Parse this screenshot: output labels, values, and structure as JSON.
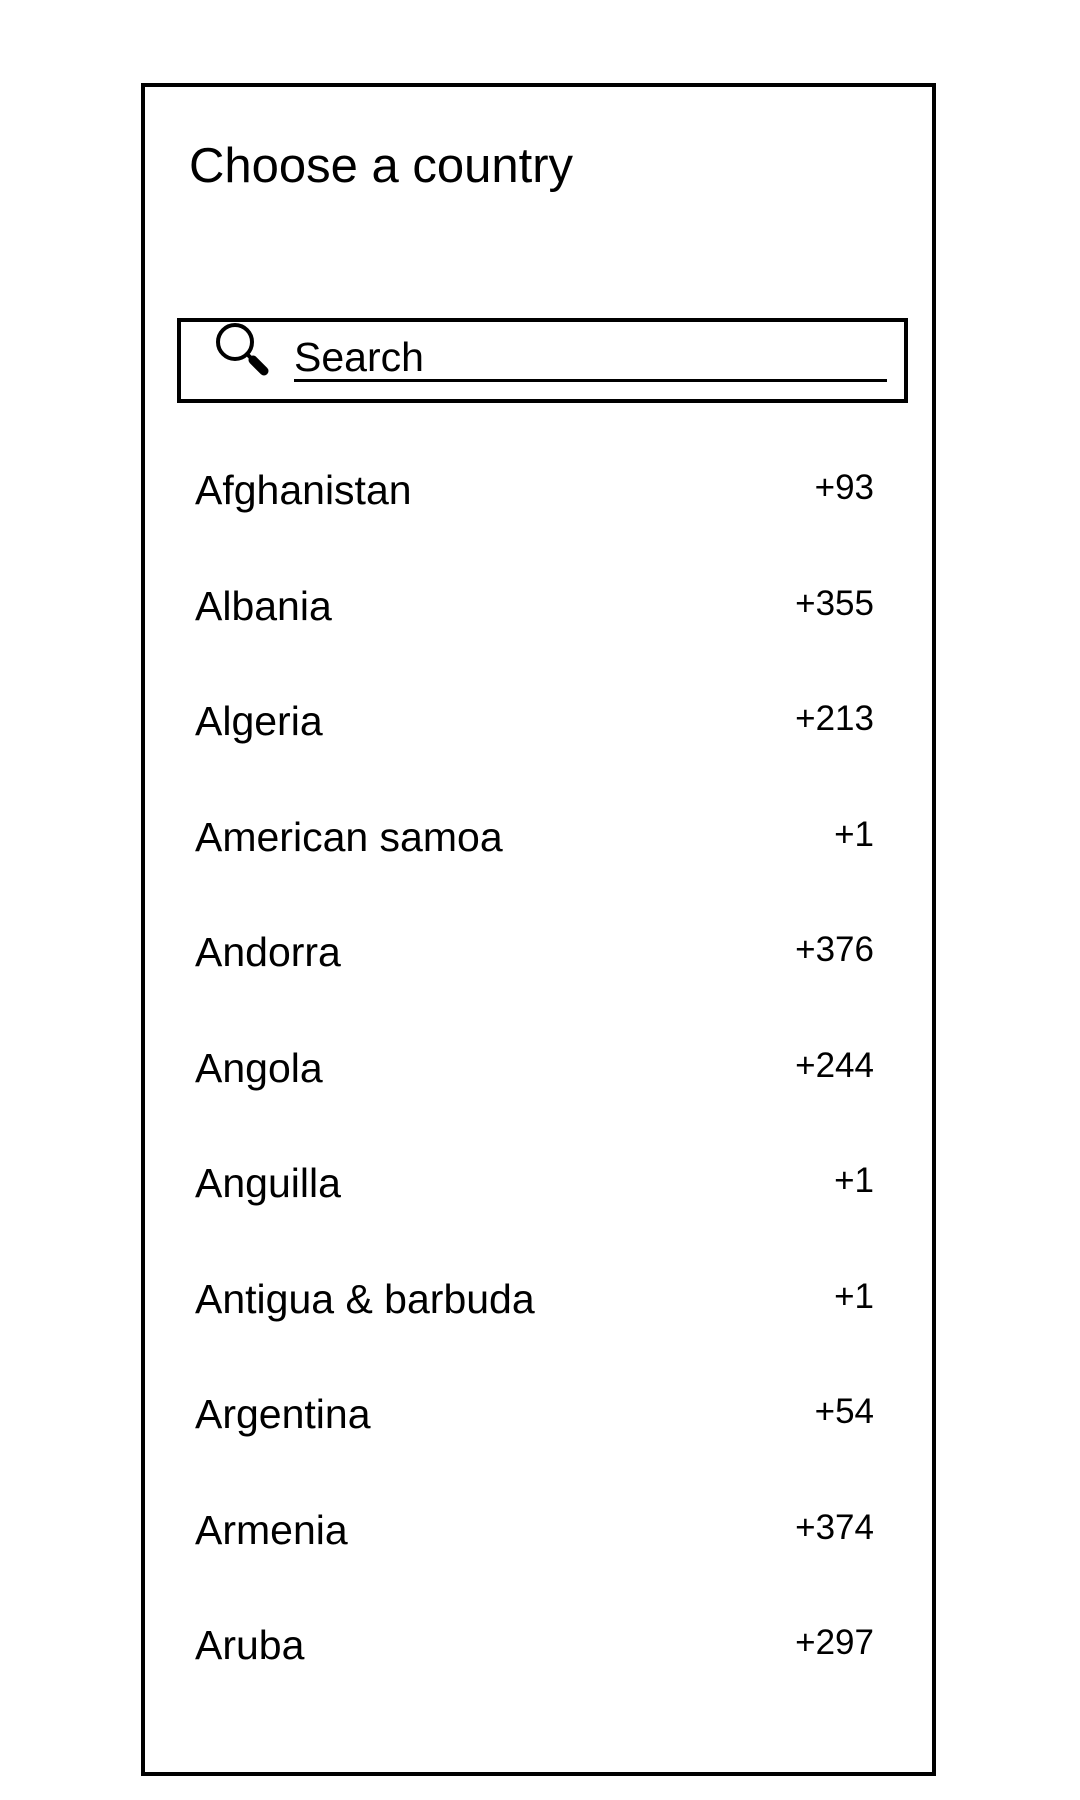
{
  "dialog": {
    "title": "Choose a country"
  },
  "search": {
    "placeholder": "Search",
    "value": "",
    "icon": "search-icon"
  },
  "countries": [
    {
      "name": "Afghanistan",
      "code": "+93"
    },
    {
      "name": "Albania",
      "code": "+355"
    },
    {
      "name": "Algeria",
      "code": "+213"
    },
    {
      "name": "American samoa",
      "code": "+1"
    },
    {
      "name": "Andorra",
      "code": "+376"
    },
    {
      "name": "Angola",
      "code": "+244"
    },
    {
      "name": "Anguilla",
      "code": "+1"
    },
    {
      "name": "Antigua & barbuda",
      "code": "+1"
    },
    {
      "name": "Argentina",
      "code": "+54"
    },
    {
      "name": "Armenia",
      "code": "+374"
    },
    {
      "name": "Aruba",
      "code": "+297"
    }
  ]
}
